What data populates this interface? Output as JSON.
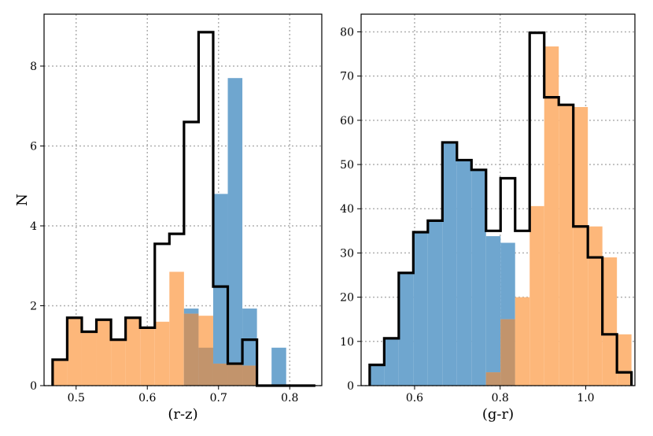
{
  "chart_data": [
    {
      "type": "histogram",
      "xlabel": "(r-z)",
      "ylabel": "N",
      "xlim": [
        0.455,
        0.845
      ],
      "ylim": [
        0,
        9.3
      ],
      "xticks": [
        0.5,
        0.6,
        0.7,
        0.8
      ],
      "xtick_labels": [
        "0.5",
        "0.6",
        "0.7",
        "0.8"
      ],
      "yticks": [
        0,
        2,
        4,
        6,
        8
      ],
      "ytick_labels": [
        "0",
        "2",
        "4",
        "6",
        "8"
      ],
      "grid": true,
      "colors": {
        "blue": "#6fa6cf",
        "orange": "#fdb77a",
        "overlap": "#c2946c",
        "outline": "#000000"
      },
      "bin_edges": [
        0.467,
        0.4875,
        0.508,
        0.5285,
        0.549,
        0.5695,
        0.59,
        0.6105,
        0.631,
        0.6515,
        0.672,
        0.6925,
        0.713,
        0.7335,
        0.754,
        0.7745,
        0.795,
        0.8155,
        0.836
      ],
      "series": [
        {
          "color": "blue",
          "values": [
            0,
            0,
            0,
            0,
            0,
            0,
            0,
            0,
            0,
            1.93,
            0.95,
            4.8,
            7.7,
            1.93,
            0,
            0.95,
            0,
            0
          ]
        },
        {
          "color": "orange",
          "values": [
            0.65,
            1.7,
            1.35,
            1.65,
            1.15,
            1.7,
            1.45,
            1.6,
            2.85,
            1.8,
            1.75,
            0.55,
            0.55,
            0.5,
            0,
            0,
            0,
            0
          ]
        },
        {
          "color": "outline",
          "values": [
            0.65,
            1.7,
            1.35,
            1.65,
            1.15,
            1.7,
            1.45,
            3.55,
            3.8,
            6.6,
            8.85,
            2.48,
            0.55,
            1.15,
            0,
            0,
            0,
            0
          ]
        }
      ]
    },
    {
      "type": "histogram",
      "xlabel": "(g-r)",
      "ylabel": "",
      "xlim": [
        0.475,
        1.115
      ],
      "ylim": [
        0,
        84
      ],
      "xticks": [
        0.6,
        0.8,
        1.0
      ],
      "xtick_labels": [
        "0.6",
        "0.8",
        "1.0"
      ],
      "yticks": [
        0,
        10,
        20,
        30,
        40,
        50,
        60,
        70,
        80
      ],
      "ytick_labels": [
        "0",
        "10",
        "20",
        "30",
        "40",
        "50",
        "60",
        "70",
        "80"
      ],
      "grid": true,
      "colors": {
        "blue": "#6fa6cf",
        "orange": "#fdb77a",
        "overlap": "#c2946c",
        "outline": "#000000"
      },
      "bin_edges": [
        0.495,
        0.529,
        0.563,
        0.597,
        0.631,
        0.665,
        0.699,
        0.733,
        0.767,
        0.801,
        0.835,
        0.869,
        0.903,
        0.937,
        0.971,
        1.005,
        1.039,
        1.073,
        1.107
      ],
      "series": [
        {
          "color": "blue",
          "values": [
            4.7,
            10.7,
            25.5,
            34.7,
            37.3,
            55,
            51,
            48.8,
            33.8,
            32.3,
            0,
            0,
            0,
            0,
            0,
            0,
            0,
            0
          ]
        },
        {
          "color": "orange",
          "values": [
            0,
            0,
            0,
            0,
            0,
            0,
            0,
            0,
            3,
            15,
            20,
            40.6,
            76.7,
            63.6,
            63,
            36,
            29,
            11.6
          ]
        },
        {
          "color": "outline",
          "values": [
            4.7,
            10.7,
            25.5,
            34.7,
            37.3,
            55,
            51,
            48.8,
            35,
            46.9,
            35,
            79.8,
            65.2,
            63.5,
            36,
            29,
            11.6,
            3
          ]
        }
      ]
    }
  ]
}
